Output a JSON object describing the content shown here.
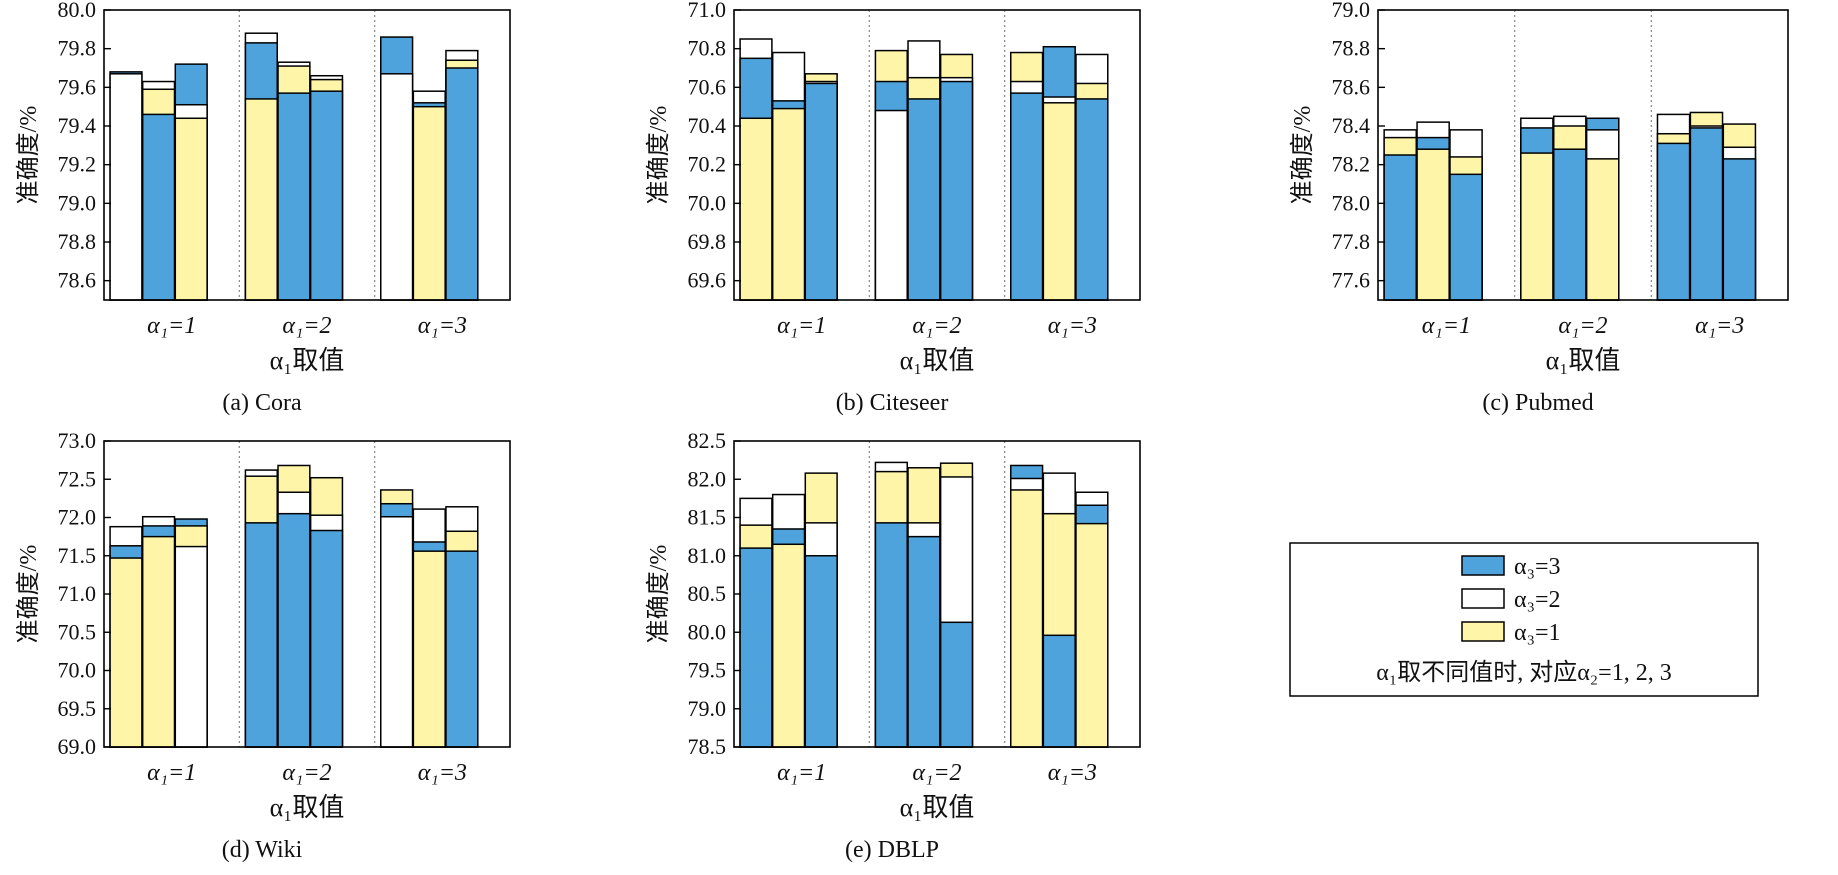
{
  "colors": {
    "alpha3_3": "#4fa3dd",
    "alpha3_2": "#ffffff",
    "alpha3_1": "#fff5a8",
    "stroke": "#000000",
    "divider": "#888888"
  },
  "legend": {
    "items": [
      {
        "key": "alpha3_3",
        "label": "α₃=3"
      },
      {
        "key": "alpha3_2",
        "label": "α₃=2"
      },
      {
        "key": "alpha3_1",
        "label": "α₃=1"
      }
    ],
    "note": "α₁取不同值时, 对应α₂=1, 2, 3"
  },
  "chart_data": [
    {
      "type": "bar",
      "caption": "(a) Cora",
      "ylabel": "准确度/%",
      "xlabel": "α₁取值",
      "categories": [
        "α₁=1",
        "α₁=2",
        "α₁=3"
      ],
      "ylim": [
        78.5,
        80.0
      ],
      "yticks": [
        "80.0",
        "79.8",
        "79.6",
        "79.4",
        "79.2",
        "79.0",
        "78.8",
        "78.6"
      ],
      "bars": [
        {
          "group": "α₁=1",
          "alpha2": 1,
          "values": {
            "alpha3_1": null,
            "alpha3_2": 79.67,
            "alpha3_3": 79.68
          }
        },
        {
          "group": "α₁=1",
          "alpha2": 2,
          "values": {
            "alpha3_1": 79.59,
            "alpha3_2": 79.63,
            "alpha3_3": 79.46
          }
        },
        {
          "group": "α₁=1",
          "alpha2": 3,
          "values": {
            "alpha3_1": 79.44,
            "alpha3_2": 79.51,
            "alpha3_3": 79.72
          }
        },
        {
          "group": "α₁=2",
          "alpha2": 1,
          "values": {
            "alpha3_1": 79.54,
            "alpha3_2": 79.88,
            "alpha3_3": 79.83
          }
        },
        {
          "group": "α₁=2",
          "alpha2": 2,
          "values": {
            "alpha3_1": 79.71,
            "alpha3_2": 79.73,
            "alpha3_3": 79.57
          }
        },
        {
          "group": "α₁=2",
          "alpha2": 3,
          "values": {
            "alpha3_1": 79.64,
            "alpha3_2": 79.66,
            "alpha3_3": 79.58
          }
        },
        {
          "group": "α₁=3",
          "alpha2": 1,
          "values": {
            "alpha3_1": null,
            "alpha3_2": 79.67,
            "alpha3_3": 79.86
          }
        },
        {
          "group": "α₁=3",
          "alpha2": 2,
          "values": {
            "alpha3_1": 79.5,
            "alpha3_2": 79.58,
            "alpha3_3": 79.52
          }
        },
        {
          "group": "α₁=3",
          "alpha2": 3,
          "values": {
            "alpha3_1": 79.74,
            "alpha3_2": 79.79,
            "alpha3_3": 79.7
          }
        }
      ]
    },
    {
      "type": "bar",
      "caption": "(b) Citeseer",
      "ylabel": "准确度/%",
      "xlabel": "α₁取值",
      "categories": [
        "α₁=1",
        "α₁=2",
        "α₁=3"
      ],
      "ylim": [
        69.5,
        71.0
      ],
      "yticks": [
        "71.0",
        "70.8",
        "70.6",
        "70.4",
        "70.2",
        "70.0",
        "69.8",
        "69.6"
      ],
      "bars": [
        {
          "group": "α₁=1",
          "alpha2": 1,
          "values": {
            "alpha3_1": 70.44,
            "alpha3_2": 70.85,
            "alpha3_3": 70.75
          }
        },
        {
          "group": "α₁=1",
          "alpha2": 2,
          "values": {
            "alpha3_1": 70.49,
            "alpha3_2": 70.78,
            "alpha3_3": 70.53
          }
        },
        {
          "group": "α₁=1",
          "alpha2": 3,
          "values": {
            "alpha3_1": 70.67,
            "alpha3_2": 70.63,
            "alpha3_3": 70.62
          }
        },
        {
          "group": "α₁=2",
          "alpha2": 1,
          "values": {
            "alpha3_1": 70.79,
            "alpha3_2": 70.48,
            "alpha3_3": 70.63
          }
        },
        {
          "group": "α₁=2",
          "alpha2": 2,
          "values": {
            "alpha3_1": 70.65,
            "alpha3_2": 70.84,
            "alpha3_3": 70.54
          }
        },
        {
          "group": "α₁=2",
          "alpha2": 3,
          "values": {
            "alpha3_1": 70.77,
            "alpha3_2": 70.65,
            "alpha3_3": 70.63
          }
        },
        {
          "group": "α₁=3",
          "alpha2": 1,
          "values": {
            "alpha3_1": 70.78,
            "alpha3_2": 70.63,
            "alpha3_3": 70.57
          }
        },
        {
          "group": "α₁=3",
          "alpha2": 2,
          "values": {
            "alpha3_1": 70.52,
            "alpha3_2": 70.55,
            "alpha3_3": 70.81
          }
        },
        {
          "group": "α₁=3",
          "alpha2": 3,
          "values": {
            "alpha3_1": 70.62,
            "alpha3_2": 70.77,
            "alpha3_3": 70.54
          }
        }
      ]
    },
    {
      "type": "bar",
      "caption": "(c) Pubmed",
      "ylabel": "准确度/%",
      "xlabel": "α₁取值",
      "categories": [
        "α₁=1",
        "α₁=2",
        "α₁=3"
      ],
      "ylim": [
        77.5,
        79.0
      ],
      "yticks": [
        "79.0",
        "78.8",
        "78.6",
        "78.4",
        "78.2",
        "78.0",
        "77.8",
        "77.6"
      ],
      "bars": [
        {
          "group": "α₁=1",
          "alpha2": 1,
          "values": {
            "alpha3_1": 78.34,
            "alpha3_2": 78.38,
            "alpha3_3": 78.25
          }
        },
        {
          "group": "α₁=1",
          "alpha2": 2,
          "values": {
            "alpha3_1": 78.28,
            "alpha3_2": 78.42,
            "alpha3_3": 78.34
          }
        },
        {
          "group": "α₁=1",
          "alpha2": 3,
          "values": {
            "alpha3_1": 78.24,
            "alpha3_2": 78.38,
            "alpha3_3": 78.15
          }
        },
        {
          "group": "α₁=2",
          "alpha2": 1,
          "values": {
            "alpha3_1": 78.26,
            "alpha3_2": 78.44,
            "alpha3_3": 78.39
          }
        },
        {
          "group": "α₁=2",
          "alpha2": 2,
          "values": {
            "alpha3_1": 78.4,
            "alpha3_2": 78.45,
            "alpha3_3": 78.28
          }
        },
        {
          "group": "α₁=2",
          "alpha2": 3,
          "values": {
            "alpha3_1": 78.23,
            "alpha3_2": 78.38,
            "alpha3_3": 78.44
          }
        },
        {
          "group": "α₁=3",
          "alpha2": 1,
          "values": {
            "alpha3_1": 78.36,
            "alpha3_2": 78.46,
            "alpha3_3": 78.31
          }
        },
        {
          "group": "α₁=3",
          "alpha2": 2,
          "values": {
            "alpha3_1": 78.47,
            "alpha3_2": 78.4,
            "alpha3_3": 78.39
          }
        },
        {
          "group": "α₁=3",
          "alpha2": 3,
          "values": {
            "alpha3_1": 78.41,
            "alpha3_2": 78.29,
            "alpha3_3": 78.23
          }
        }
      ]
    },
    {
      "type": "bar",
      "caption": "(d) Wiki",
      "ylabel": "准确度/%",
      "xlabel": "α₁取值",
      "categories": [
        "α₁=1",
        "α₁=2",
        "α₁=3"
      ],
      "ylim": [
        69.0,
        73.0
      ],
      "yticks": [
        "73.0",
        "72.5",
        "72.0",
        "71.5",
        "71.0",
        "70.5",
        "70.0",
        "69.5",
        "69.0"
      ],
      "bars": [
        {
          "group": "α₁=1",
          "alpha2": 1,
          "values": {
            "alpha3_1": 71.47,
            "alpha3_2": 71.88,
            "alpha3_3": 71.63
          }
        },
        {
          "group": "α₁=1",
          "alpha2": 2,
          "values": {
            "alpha3_1": 71.75,
            "alpha3_2": 72.01,
            "alpha3_3": 71.89
          }
        },
        {
          "group": "α₁=1",
          "alpha2": 3,
          "values": {
            "alpha3_1": 71.89,
            "alpha3_2": 71.62,
            "alpha3_3": 71.98
          }
        },
        {
          "group": "α₁=2",
          "alpha2": 1,
          "values": {
            "alpha3_1": 72.54,
            "alpha3_2": 72.62,
            "alpha3_3": 71.93
          }
        },
        {
          "group": "α₁=2",
          "alpha2": 2,
          "values": {
            "alpha3_1": 72.68,
            "alpha3_2": 72.33,
            "alpha3_3": 72.05
          }
        },
        {
          "group": "α₁=2",
          "alpha2": 3,
          "values": {
            "alpha3_1": 72.52,
            "alpha3_2": 72.03,
            "alpha3_3": 71.83
          }
        },
        {
          "group": "α₁=3",
          "alpha2": 1,
          "values": {
            "alpha3_1": 72.36,
            "alpha3_2": 72.01,
            "alpha3_3": 72.18
          }
        },
        {
          "group": "α₁=3",
          "alpha2": 2,
          "values": {
            "alpha3_1": 71.56,
            "alpha3_2": 72.11,
            "alpha3_3": 71.68
          }
        },
        {
          "group": "α₁=3",
          "alpha2": 3,
          "values": {
            "alpha3_1": 71.82,
            "alpha3_2": 72.14,
            "alpha3_3": 71.56
          }
        }
      ]
    },
    {
      "type": "bar",
      "caption": "(e) DBLP",
      "ylabel": "准确度/%",
      "xlabel": "α₁取值",
      "categories": [
        "α₁=1",
        "α₁=2",
        "α₁=3"
      ],
      "ylim": [
        78.5,
        82.5
      ],
      "yticks": [
        "82.5",
        "82.0",
        "81.5",
        "81.0",
        "80.5",
        "80.0",
        "79.5",
        "79.0",
        "78.5"
      ],
      "bars": [
        {
          "group": "α₁=1",
          "alpha2": 1,
          "values": {
            "alpha3_1": 81.4,
            "alpha3_2": 81.75,
            "alpha3_3": 81.1
          }
        },
        {
          "group": "α₁=1",
          "alpha2": 2,
          "values": {
            "alpha3_1": 81.15,
            "alpha3_2": 81.8,
            "alpha3_3": 81.35
          }
        },
        {
          "group": "α₁=1",
          "alpha2": 3,
          "values": {
            "alpha3_1": 82.08,
            "alpha3_2": 81.43,
            "alpha3_3": 81.0
          }
        },
        {
          "group": "α₁=2",
          "alpha2": 1,
          "values": {
            "alpha3_1": 82.1,
            "alpha3_2": 82.22,
            "alpha3_3": 81.43
          }
        },
        {
          "group": "α₁=2",
          "alpha2": 2,
          "values": {
            "alpha3_1": 82.15,
            "alpha3_2": 81.43,
            "alpha3_3": 81.25
          }
        },
        {
          "group": "α₁=2",
          "alpha2": 3,
          "values": {
            "alpha3_1": 82.21,
            "alpha3_2": 82.03,
            "alpha3_3": 80.13
          }
        },
        {
          "group": "α₁=3",
          "alpha2": 1,
          "values": {
            "alpha3_1": 81.86,
            "alpha3_2": 82.01,
            "alpha3_3": 82.18
          }
        },
        {
          "group": "α₁=3",
          "alpha2": 2,
          "values": {
            "alpha3_1": 81.55,
            "alpha3_2": 82.08,
            "alpha3_3": 79.96
          }
        },
        {
          "group": "α₁=3",
          "alpha2": 3,
          "values": {
            "alpha3_1": 81.42,
            "alpha3_2": 81.83,
            "alpha3_3": 81.66
          }
        }
      ]
    }
  ]
}
